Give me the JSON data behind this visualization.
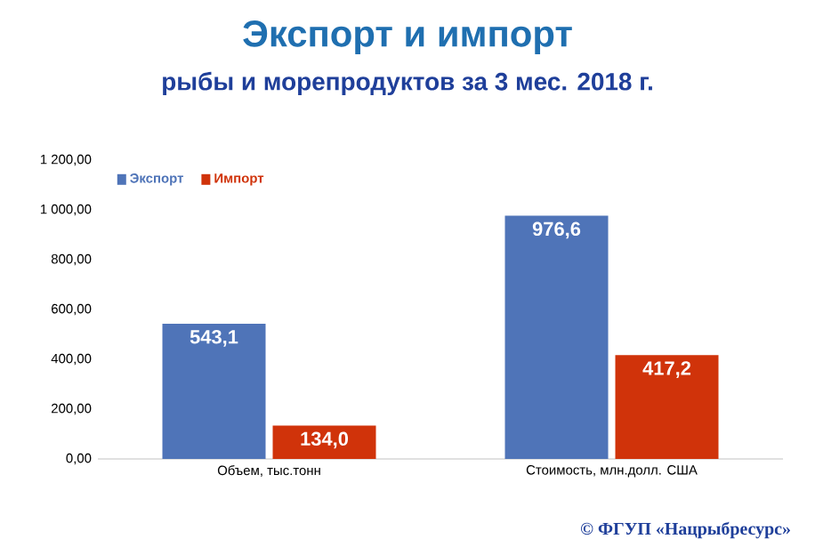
{
  "chart_data": {
    "type": "bar",
    "title": "Экспорт и импорт",
    "subtitle": "рыбы и морепродуктов за 3 мес. 2018 г.",
    "categories": [
      "Объем, тыс.тонн",
      "Стоимость, млн.долл. США"
    ],
    "series": [
      {
        "name": "Экспорт",
        "color": "#4f74b8",
        "values": [
          543.1,
          976.6
        ],
        "value_labels": [
          "543,1",
          "976,6"
        ]
      },
      {
        "name": "Импорт",
        "color": "#d0330a",
        "values": [
          134.0,
          417.2
        ],
        "value_labels": [
          "134,0",
          "417,2"
        ]
      }
    ],
    "ylim": [
      0,
      1200
    ],
    "yticks": [
      {
        "value": 0,
        "label": "0,00"
      },
      {
        "value": 200,
        "label": "200,00"
      },
      {
        "value": 400,
        "label": "400,00"
      },
      {
        "value": 600,
        "label": "600,00"
      },
      {
        "value": 800,
        "label": "800,00"
      },
      {
        "value": 1000,
        "label": "1 000,00"
      },
      {
        "value": 1200,
        "label": "1 200,00"
      }
    ],
    "legend": "top left",
    "grid": false,
    "annotations": [
      "© ФГУП «Нацрыбресурс»"
    ]
  }
}
